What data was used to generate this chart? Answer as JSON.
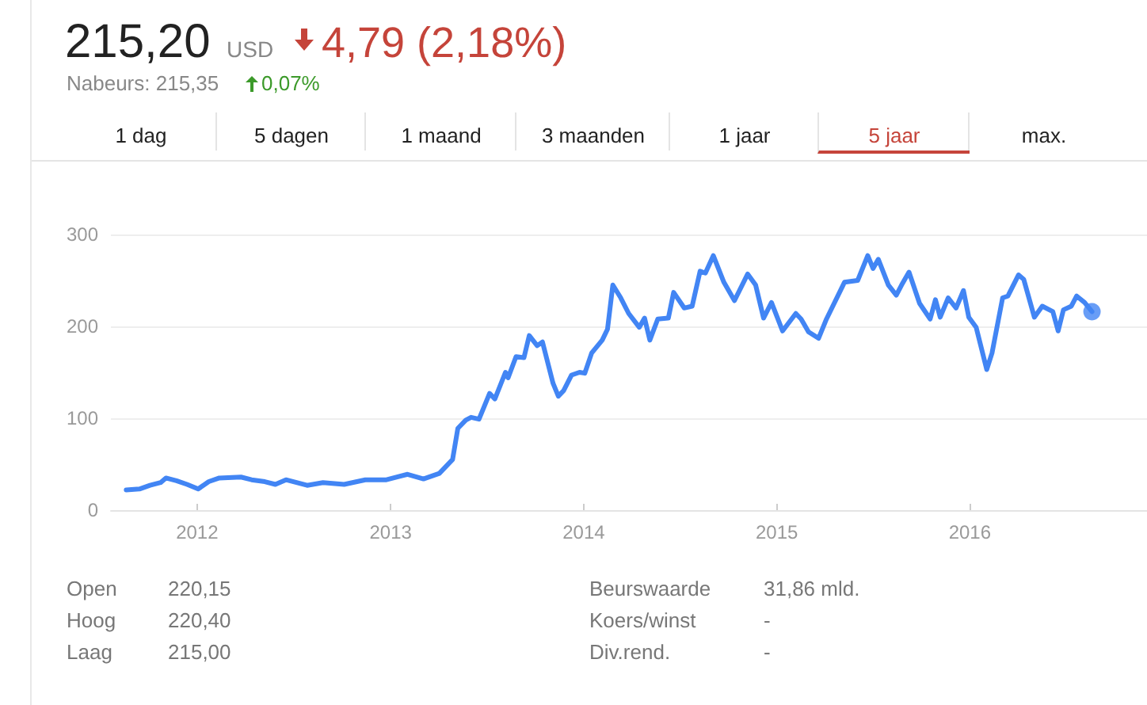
{
  "chart_data": {
    "type": "line",
    "title": "215,20",
    "annotations": [
      "USD",
      "4,79 (2,18%)",
      "Nabeurs: 215,35",
      "0,07%",
      "1 dag",
      "5 dagen",
      "1 maand",
      "3 maanden",
      "1 jaar",
      "5 jaar",
      "max.",
      "Open",
      "220,15",
      "Hoog",
      "220,40",
      "Laag",
      "215,00",
      "Beurswaarde",
      "31,86 mld.",
      "Koers/winst",
      "-",
      "Div.rend.",
      "-"
    ],
    "xlim": [
      "2011-07-22",
      "2016-12-01"
    ],
    "xticks": [
      "2012",
      "2013",
      "2014",
      "2015",
      "2016"
    ],
    "ylim": [
      0,
      300
    ],
    "yticks": [
      0,
      100,
      200,
      300
    ],
    "grid": "y",
    "marker": "none",
    "line_style": "solid",
    "series": [
      {
        "color": "#4285f4",
        "x": [
          "2011-08-20",
          "2011-09-14",
          "2011-10-04",
          "2011-10-24",
          "2011-11-03",
          "2011-11-23",
          "2011-12-13",
          "2012-01-03",
          "2012-01-23",
          "2012-02-12",
          "2012-03-24",
          "2012-04-13",
          "2012-05-08",
          "2012-05-28",
          "2012-06-17",
          "2012-07-07",
          "2012-07-27",
          "2012-08-26",
          "2012-10-05",
          "2012-11-14",
          "2012-12-24",
          "2013-02-02",
          "2013-03-04",
          "2013-04-03",
          "2013-04-28",
          "2013-05-08",
          "2013-05-23",
          "2013-06-02",
          "2013-06-17",
          "2013-07-07",
          "2013-07-17",
          "2013-08-06",
          "2013-08-11",
          "2013-08-26",
          "2013-09-10",
          "2013-09-20",
          "2013-10-05",
          "2013-10-15",
          "2013-11-04",
          "2013-11-14",
          "2013-11-24",
          "2013-12-09",
          "2013-12-24",
          "2014-01-03",
          "2014-01-16",
          "2014-02-05",
          "2014-02-15",
          "2014-02-25",
          "2014-03-12",
          "2014-03-27",
          "2014-04-16",
          "2014-04-26",
          "2014-05-06",
          "2014-05-21",
          "2014-06-10",
          "2014-06-20",
          "2014-07-10",
          "2014-07-25",
          "2014-08-09",
          "2014-08-19",
          "2014-09-03",
          "2014-09-23",
          "2014-10-13",
          "2014-11-07",
          "2014-11-22",
          "2014-12-07",
          "2014-12-22",
          "2015-01-12",
          "2015-02-06",
          "2015-02-16",
          "2015-03-02",
          "2015-03-21",
          "2015-04-05",
          "2015-05-09",
          "2015-06-03",
          "2015-06-22",
          "2015-07-02",
          "2015-07-12",
          "2015-07-31",
          "2015-08-15",
          "2015-08-25",
          "2015-09-08",
          "2015-09-28",
          "2015-10-18",
          "2015-10-28",
          "2015-11-06",
          "2015-11-21",
          "2015-12-06",
          "2015-12-20",
          "2015-12-30",
          "2016-01-13",
          "2016-02-02",
          "2016-02-12",
          "2016-03-03",
          "2016-03-13",
          "2016-04-02",
          "2016-04-12",
          "2016-05-02",
          "2016-05-17",
          "2016-06-06",
          "2016-06-16",
          "2016-06-26",
          "2016-07-11",
          "2016-07-21",
          "2016-08-05",
          "2016-08-19"
        ],
        "values": [
          22,
          23,
          27,
          30,
          35,
          32,
          28,
          23,
          31,
          35,
          36,
          33,
          31,
          28,
          33,
          30,
          27,
          30,
          28,
          33,
          33,
          39,
          34,
          40,
          55,
          89,
          98,
          101,
          99,
          127,
          121,
          150,
          144,
          167,
          166,
          190,
          179,
          183,
          138,
          124,
          130,
          147,
          150,
          149,
          171,
          185,
          197,
          245,
          231,
          214,
          199,
          209,
          185,
          208,
          209,
          237,
          220,
          222,
          260,
          258,
          277,
          248,
          228,
          257,
          245,
          209,
          226,
          195,
          214,
          208,
          194,
          187,
          208,
          248,
          250,
          277,
          263,
          273,
          245,
          234,
          245,
          259,
          225,
          208,
          229,
          210,
          231,
          220,
          239,
          210,
          199,
          153,
          171,
          231,
          233,
          256,
          251,
          210,
          222,
          216,
          195,
          218,
          222,
          233,
          226,
          216
        ]
      },
      {
        "type": "scatter",
        "color": "#4285f4",
        "marker": "circle",
        "x": [
          "2016-08-19"
        ],
        "values": [
          216
        ]
      }
    ]
  }
}
